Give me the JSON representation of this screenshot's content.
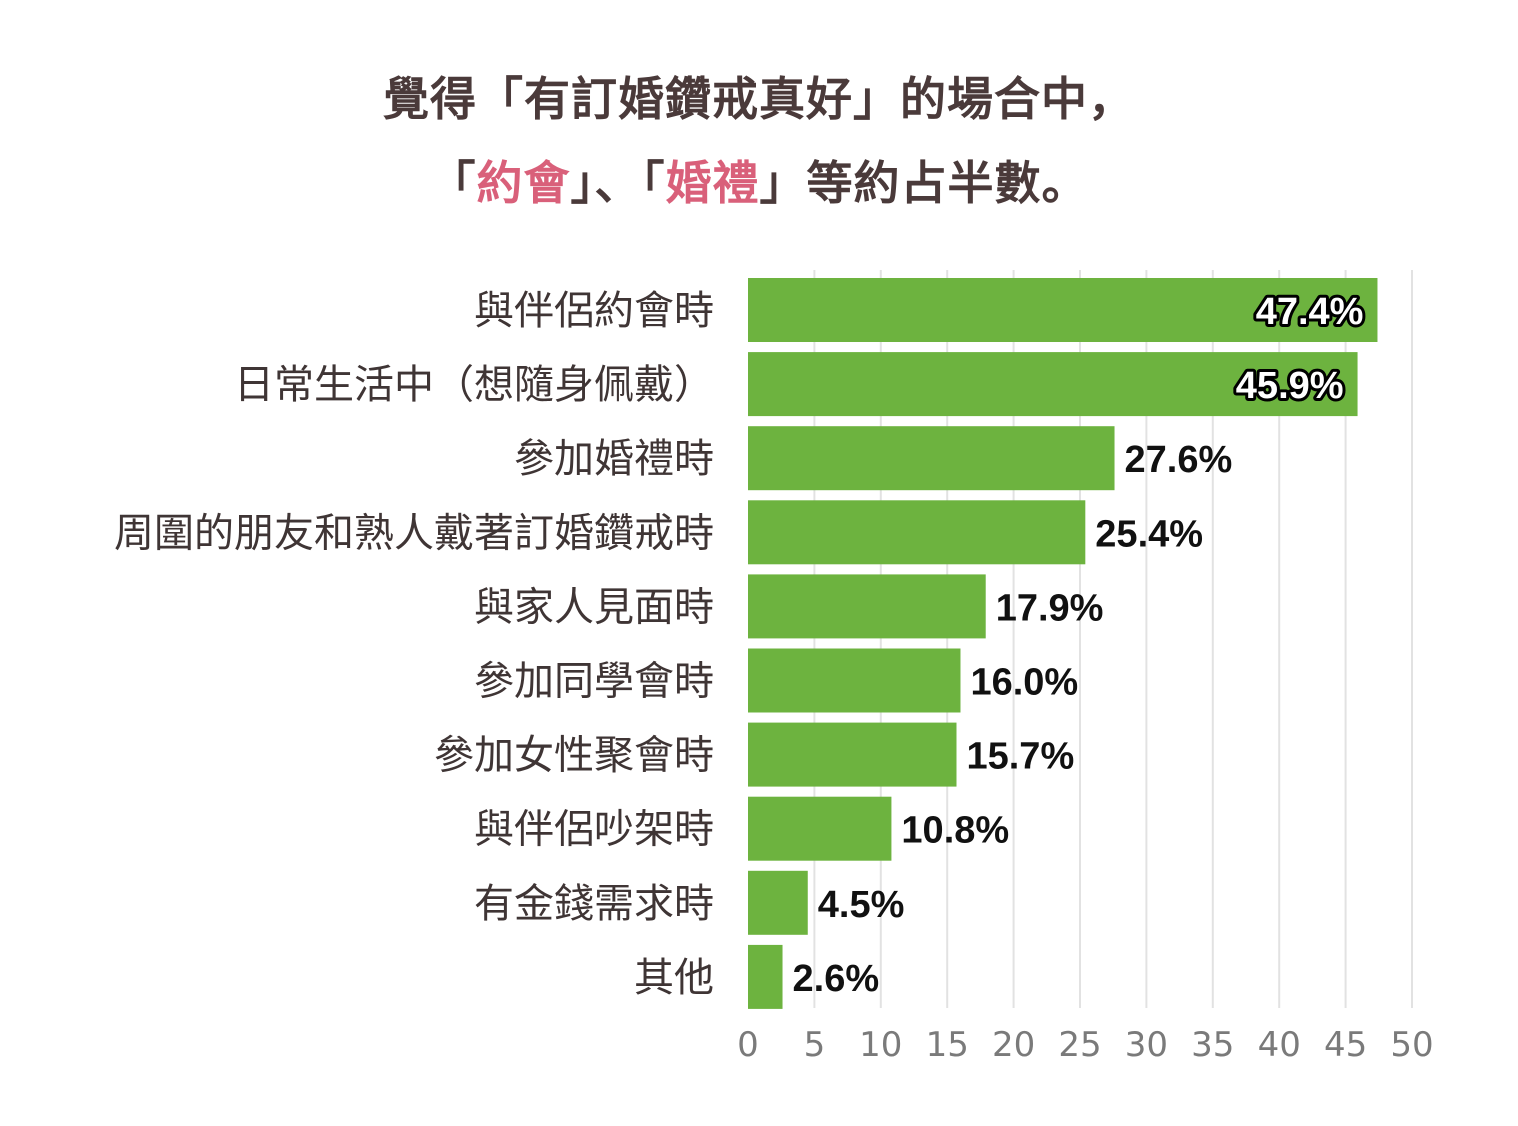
{
  "title": {
    "line1": "覺得「有訂婚鑽戒真好」的場合中，",
    "line2_pre": "「",
    "line2_accent1": "約會",
    "line2_mid": "」、「",
    "line2_accent2": "婚禮",
    "line2_post": "」等約占半數。"
  },
  "colors": {
    "bar": "#6db33f",
    "title": "#4a3a3a",
    "accent": "#d9607a",
    "grid": "#e2e2e2"
  },
  "chart_data": {
    "type": "bar",
    "orientation": "horizontal",
    "categories": [
      "與伴侶約會時",
      "日常生活中（想隨身佩戴）",
      "參加婚禮時",
      "周圍的朋友和熟人戴著訂婚鑽戒時",
      "與家人見面時",
      "參加同學會時",
      "參加女性聚會時",
      "與伴侶吵架時",
      "有金錢需求時",
      "其他"
    ],
    "values": [
      47.4,
      45.9,
      27.6,
      25.4,
      17.9,
      16.0,
      15.7,
      10.8,
      4.5,
      2.6
    ],
    "value_labels": [
      "47.4%",
      "45.9%",
      "27.6%",
      "25.4%",
      "17.9%",
      "16.0%",
      "15.7%",
      "10.8%",
      "4.5%",
      "2.6%"
    ],
    "xlim": [
      0,
      50
    ],
    "xticks": [
      "0",
      "5",
      "10",
      "15",
      "20",
      "25",
      "30",
      "35",
      "40",
      "45",
      "50"
    ],
    "grid": true,
    "xlabel": "",
    "ylabel": ""
  }
}
